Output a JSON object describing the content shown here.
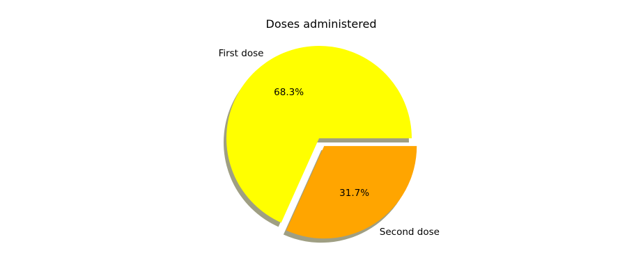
{
  "chart_data": {
    "type": "pie",
    "title": "Doses administered",
    "labels": [
      "First dose",
      "Second dose"
    ],
    "values": [
      68.3,
      31.7
    ],
    "percent_labels": [
      "68.3%",
      "31.7%"
    ],
    "colors": [
      "#ffff00",
      "#ffa500"
    ],
    "explode": [
      0,
      0.1
    ],
    "shadow": true,
    "start_angle": 0,
    "legend": "none"
  }
}
